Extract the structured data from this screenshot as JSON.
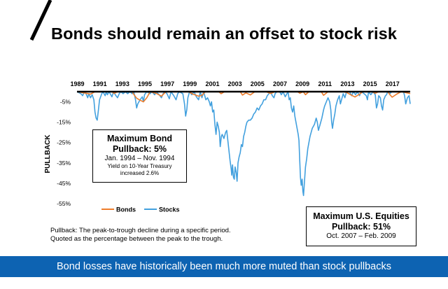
{
  "title": "Bonds should remain an offset to stock risk",
  "colors": {
    "bonds": "#ee7d2b",
    "stocks": "#42a0de",
    "banner": "#0d63b2"
  },
  "chart_data": {
    "type": "line",
    "ylabel": "PULLBACK",
    "xlim": [
      1989,
      2018.6
    ],
    "ylim": [
      -55,
      0
    ],
    "x_ticks": [
      "1989",
      "1991",
      "1993",
      "1995",
      "1997",
      "1999",
      "2001",
      "2003",
      "2005",
      "2007",
      "2009",
      "2011",
      "2013",
      "2015",
      "2017"
    ],
    "y_ticks": [
      "-5%",
      "-15%",
      "-25%",
      "-35%",
      "-45%",
      "-55%"
    ],
    "y_tick_values": [
      -5,
      -15,
      -25,
      -35,
      -45,
      -55
    ],
    "series": [
      {
        "name": "Bonds",
        "points": [
          [
            1989,
            0
          ],
          [
            1989.8,
            -0.8
          ],
          [
            1990.2,
            -1.2
          ],
          [
            1990.6,
            0
          ],
          [
            1992.1,
            0
          ],
          [
            1992.3,
            -0.9
          ],
          [
            1992.6,
            0
          ],
          [
            1993.9,
            0
          ],
          [
            1994.0,
            -1
          ],
          [
            1994.3,
            -3.2
          ],
          [
            1994.6,
            -4.2
          ],
          [
            1994.9,
            -5
          ],
          [
            1995.2,
            -3
          ],
          [
            1995.5,
            0
          ],
          [
            1996.1,
            -1
          ],
          [
            1996.5,
            -2.2
          ],
          [
            1996.9,
            0
          ],
          [
            1998.9,
            0
          ],
          [
            1999.3,
            -1.2
          ],
          [
            1999.8,
            -2.2
          ],
          [
            2000.1,
            -1.8
          ],
          [
            2000.4,
            0
          ],
          [
            2001.6,
            0
          ],
          [
            2001.8,
            -1
          ],
          [
            2002.1,
            0
          ],
          [
            2003.5,
            0
          ],
          [
            2003.7,
            -1.7
          ],
          [
            2004.0,
            -0.6
          ],
          [
            2004.4,
            -1.6
          ],
          [
            2004.8,
            0
          ],
          [
            2005.8,
            0
          ],
          [
            2006.2,
            -0.9
          ],
          [
            2006.6,
            0
          ],
          [
            2008.6,
            0
          ],
          [
            2008.8,
            -0.8
          ],
          [
            2009.1,
            0
          ],
          [
            2009.3,
            -1.5
          ],
          [
            2009.6,
            0
          ],
          [
            2010.7,
            0
          ],
          [
            2010.9,
            -1.8
          ],
          [
            2011.3,
            0
          ],
          [
            2012.7,
            0
          ],
          [
            2013.0,
            -0.5
          ],
          [
            2013.4,
            -1.8
          ],
          [
            2013.7,
            -2.6
          ],
          [
            2014.1,
            -1.2
          ],
          [
            2014.4,
            0
          ],
          [
            2015.2,
            0
          ],
          [
            2015.5,
            -0.8
          ],
          [
            2015.8,
            0
          ],
          [
            2016.6,
            0
          ],
          [
            2016.8,
            -1.5
          ],
          [
            2017.0,
            -2.7
          ],
          [
            2017.4,
            -1.2
          ],
          [
            2017.8,
            0
          ],
          [
            2018.3,
            -0.6
          ],
          [
            2018.6,
            -1
          ]
        ]
      },
      {
        "name": "Stocks",
        "points": [
          [
            1989,
            0
          ],
          [
            1989.35,
            -1
          ],
          [
            1989.5,
            -2
          ],
          [
            1989.65,
            0
          ],
          [
            1989.8,
            -1
          ],
          [
            1989.95,
            -3
          ],
          [
            1990.05,
            -1
          ],
          [
            1990.2,
            -3
          ],
          [
            1990.35,
            -1.5
          ],
          [
            1990.5,
            -4
          ],
          [
            1990.6,
            -10
          ],
          [
            1990.7,
            -13
          ],
          [
            1990.8,
            -14
          ],
          [
            1990.9,
            -9
          ],
          [
            1991.0,
            -4
          ],
          [
            1991.2,
            -1
          ],
          [
            1991.3,
            0
          ],
          [
            1991.5,
            -2
          ],
          [
            1991.6,
            0
          ],
          [
            1991.7,
            -1.5
          ],
          [
            1991.85,
            0
          ],
          [
            1992.1,
            -2.5
          ],
          [
            1992.25,
            0
          ],
          [
            1992.4,
            -1.5
          ],
          [
            1992.6,
            -3
          ],
          [
            1992.75,
            -1
          ],
          [
            1992.9,
            0
          ],
          [
            1993.1,
            -1
          ],
          [
            1993.3,
            0
          ],
          [
            1993.5,
            -1
          ],
          [
            1993.7,
            0
          ],
          [
            1993.9,
            -1
          ],
          [
            1994.05,
            0
          ],
          [
            1994.2,
            -4
          ],
          [
            1994.3,
            -8
          ],
          [
            1994.4,
            -6
          ],
          [
            1994.6,
            -4
          ],
          [
            1994.8,
            -2.5
          ],
          [
            1994.9,
            -5
          ],
          [
            1995.0,
            -1.5
          ],
          [
            1995.2,
            0
          ],
          [
            1995.5,
            -1
          ],
          [
            1995.65,
            0
          ],
          [
            1995.9,
            -1.5
          ],
          [
            1996.05,
            0
          ],
          [
            1996.3,
            -1.5
          ],
          [
            1996.5,
            -3
          ],
          [
            1996.65,
            -1
          ],
          [
            1996.8,
            0
          ],
          [
            1997.0,
            -1
          ],
          [
            1997.2,
            -3.5
          ],
          [
            1997.35,
            0
          ],
          [
            1997.6,
            -2
          ],
          [
            1997.8,
            -4
          ],
          [
            1997.95,
            -1
          ],
          [
            1998.1,
            0
          ],
          [
            1998.4,
            -1
          ],
          [
            1998.55,
            -6
          ],
          [
            1998.65,
            -12
          ],
          [
            1998.75,
            -9
          ],
          [
            1998.85,
            -3
          ],
          [
            1999.0,
            0
          ],
          [
            1999.2,
            -1.5
          ],
          [
            1999.4,
            0
          ],
          [
            1999.6,
            -2.5
          ],
          [
            1999.8,
            -4
          ],
          [
            1999.95,
            0
          ],
          [
            2000.1,
            -3
          ],
          [
            2000.25,
            0
          ],
          [
            2000.45,
            -4
          ],
          [
            2000.6,
            -3
          ],
          [
            2000.75,
            -5
          ],
          [
            2000.85,
            -7
          ],
          [
            2000.95,
            -5
          ],
          [
            2001.05,
            -10
          ],
          [
            2001.15,
            -9
          ],
          [
            2001.25,
            -16
          ],
          [
            2001.35,
            -21
          ],
          [
            2001.45,
            -15
          ],
          [
            2001.55,
            -17
          ],
          [
            2001.65,
            -20
          ],
          [
            2001.72,
            -27
          ],
          [
            2001.82,
            -22
          ],
          [
            2001.9,
            -21
          ],
          [
            2002.05,
            -23
          ],
          [
            2002.2,
            -20
          ],
          [
            2002.3,
            -19
          ],
          [
            2002.4,
            -24
          ],
          [
            2002.5,
            -29
          ],
          [
            2002.6,
            -34
          ],
          [
            2002.7,
            -38
          ],
          [
            2002.75,
            -41
          ],
          [
            2002.82,
            -36
          ],
          [
            2002.9,
            -42
          ],
          [
            2002.97,
            -43
          ],
          [
            2003.05,
            -37
          ],
          [
            2003.15,
            -40
          ],
          [
            2003.22,
            -44
          ],
          [
            2003.3,
            -35
          ],
          [
            2003.4,
            -32
          ],
          [
            2003.5,
            -30
          ],
          [
            2003.6,
            -26
          ],
          [
            2003.7,
            -27
          ],
          [
            2003.8,
            -22
          ],
          [
            2003.9,
            -20
          ],
          [
            2004.0,
            -17
          ],
          [
            2004.1,
            -15
          ],
          [
            2004.25,
            -14
          ],
          [
            2004.4,
            -14
          ],
          [
            2004.55,
            -13
          ],
          [
            2004.7,
            -11
          ],
          [
            2004.85,
            -10
          ],
          [
            2005.0,
            -8
          ],
          [
            2005.15,
            -9
          ],
          [
            2005.3,
            -7
          ],
          [
            2005.45,
            -6
          ],
          [
            2005.6,
            -4
          ],
          [
            2005.75,
            -4
          ],
          [
            2005.9,
            -2
          ],
          [
            2006.05,
            -1
          ],
          [
            2006.2,
            0
          ],
          [
            2006.35,
            -2
          ],
          [
            2006.5,
            -3
          ],
          [
            2006.6,
            -1
          ],
          [
            2006.75,
            0
          ],
          [
            2007.0,
            0
          ],
          [
            2007.15,
            -1.5
          ],
          [
            2007.3,
            0
          ],
          [
            2007.5,
            -2.5
          ],
          [
            2007.6,
            -1.5
          ],
          [
            2007.75,
            0
          ],
          [
            2007.85,
            -4
          ],
          [
            2007.95,
            -3
          ],
          [
            2008.05,
            -8
          ],
          [
            2008.15,
            -10
          ],
          [
            2008.25,
            -7
          ],
          [
            2008.35,
            -12
          ],
          [
            2008.45,
            -15
          ],
          [
            2008.55,
            -18
          ],
          [
            2008.65,
            -21
          ],
          [
            2008.72,
            -24
          ],
          [
            2008.78,
            -33
          ],
          [
            2008.85,
            -42
          ],
          [
            2008.92,
            -46
          ],
          [
            2009.0,
            -43
          ],
          [
            2009.07,
            -49
          ],
          [
            2009.12,
            -51
          ],
          [
            2009.2,
            -45
          ],
          [
            2009.3,
            -37
          ],
          [
            2009.4,
            -33
          ],
          [
            2009.5,
            -28
          ],
          [
            2009.6,
            -25
          ],
          [
            2009.7,
            -22
          ],
          [
            2009.8,
            -20
          ],
          [
            2009.9,
            -18
          ],
          [
            2010.0,
            -17
          ],
          [
            2010.1,
            -16
          ],
          [
            2010.25,
            -13
          ],
          [
            2010.35,
            -15
          ],
          [
            2010.45,
            -19
          ],
          [
            2010.6,
            -16
          ],
          [
            2010.75,
            -13
          ],
          [
            2010.9,
            -9
          ],
          [
            2011.0,
            -7
          ],
          [
            2011.15,
            -5
          ],
          [
            2011.3,
            -3
          ],
          [
            2011.45,
            -5
          ],
          [
            2011.55,
            -9
          ],
          [
            2011.62,
            -15
          ],
          [
            2011.7,
            -18
          ],
          [
            2011.8,
            -14
          ],
          [
            2011.9,
            -11
          ],
          [
            2012.0,
            -7
          ],
          [
            2012.15,
            -4
          ],
          [
            2012.3,
            -2
          ],
          [
            2012.4,
            -6
          ],
          [
            2012.5,
            -4
          ],
          [
            2012.65,
            -1
          ],
          [
            2012.8,
            -3
          ],
          [
            2012.95,
            0
          ],
          [
            2013.2,
            0
          ],
          [
            2013.4,
            -2
          ],
          [
            2013.55,
            0
          ],
          [
            2013.75,
            -1.5
          ],
          [
            2013.9,
            0
          ],
          [
            2014.1,
            -2
          ],
          [
            2014.25,
            0
          ],
          [
            2014.5,
            -1
          ],
          [
            2014.7,
            -2
          ],
          [
            2014.8,
            -4
          ],
          [
            2014.9,
            0
          ],
          [
            2015.1,
            -1.5
          ],
          [
            2015.3,
            0
          ],
          [
            2015.5,
            -1.5
          ],
          [
            2015.6,
            -8
          ],
          [
            2015.7,
            -6
          ],
          [
            2015.8,
            -2
          ],
          [
            2015.95,
            -3
          ],
          [
            2016.05,
            -7
          ],
          [
            2016.15,
            -9
          ],
          [
            2016.25,
            -4
          ],
          [
            2016.4,
            -2
          ],
          [
            2016.5,
            -1.5
          ],
          [
            2016.6,
            0
          ],
          [
            2016.8,
            -1
          ],
          [
            2016.95,
            0
          ],
          [
            2017.2,
            0
          ],
          [
            2017.5,
            0
          ],
          [
            2017.8,
            0
          ],
          [
            2018.0,
            0
          ],
          [
            2018.1,
            -2
          ],
          [
            2018.2,
            -6
          ],
          [
            2018.35,
            -3
          ],
          [
            2018.5,
            -2
          ],
          [
            2018.6,
            -6
          ]
        ]
      }
    ],
    "legend": [
      "Bonds",
      "Stocks"
    ],
    "annotations": {
      "bond_box": {
        "title_line1": "Maximum Bond",
        "title_line2": "Pullback: 5%",
        "dates": "Jan. 1994 – Nov. 1994",
        "note_line1": "Yield on 10-Year Treasury",
        "note_line2": "increased 2.6%"
      },
      "stock_box": {
        "title_line1": "Maximum U.S. Equities",
        "title_line2": "Pullback: 51%",
        "dates": "Oct. 2007 – Feb. 2009"
      }
    }
  },
  "footnote": {
    "line1": "Pullback: The peak-to-trough decline during a specific period.",
    "line2": "Quoted as the percentage between the peak to the trough."
  },
  "banner": "Bond losses have historically been much more muted than stock pullbacks"
}
